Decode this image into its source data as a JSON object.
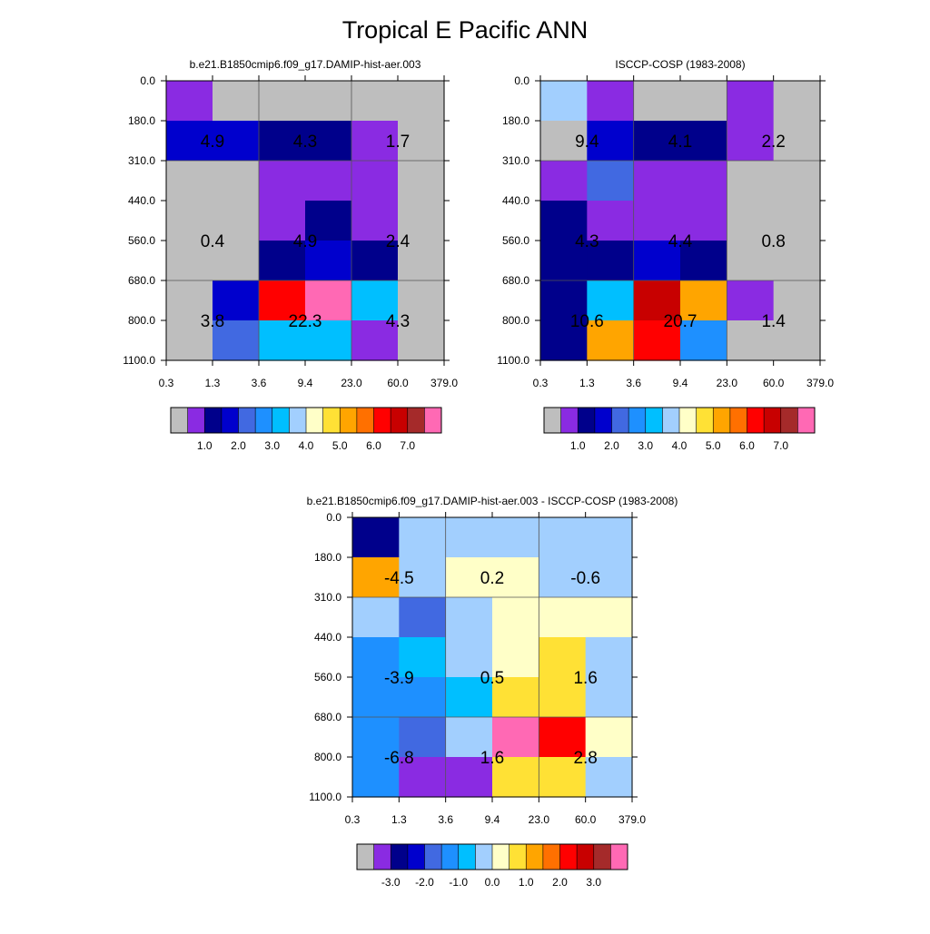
{
  "figure": {
    "title": "Tropical E Pacific ANN"
  },
  "colors": {
    "abs_palette": [
      "#bebebe",
      "#8a2be2",
      "#00008b",
      "#0000cd",
      "#4169e1",
      "#1e90ff",
      "#00bfff",
      "#a2cffe",
      "#ffffc8",
      "#ffe135",
      "#ffa500",
      "#ff7000",
      "#ff0000",
      "#c80000",
      "#a52a2a",
      "#ff69b4"
    ],
    "diff_palette": [
      "#bebebe",
      "#8a2be2",
      "#00008b",
      "#0000cd",
      "#4169e1",
      "#1e90ff",
      "#00bfff",
      "#a2cffe",
      "#ffffc8",
      "#ffe135",
      "#ffa500",
      "#ff7000",
      "#ff0000",
      "#c80000",
      "#a52a2a",
      "#ff69b4"
    ]
  },
  "chart_data": [
    {
      "type": "heatmap",
      "title": "b.e21.B1850cmip6.f09_g17.DAMIP-hist-aer.003",
      "x_ticks": [
        "0.3",
        "1.3",
        "3.6",
        "9.4",
        "23.0",
        "60.0",
        "379.0"
      ],
      "y_ticks": [
        "0.0",
        "180.0",
        "310.0",
        "440.0",
        "560.0",
        "680.0",
        "800.0",
        "1100.0"
      ],
      "cells": [
        [
          1,
          0,
          0,
          0,
          0,
          0
        ],
        [
          3,
          3,
          2,
          2,
          1,
          0
        ],
        [
          0,
          0,
          1,
          1,
          1,
          0
        ],
        [
          0,
          0,
          1,
          2,
          1,
          0
        ],
        [
          0,
          0,
          2,
          3,
          2,
          0
        ],
        [
          0,
          3,
          12,
          15,
          6,
          0
        ],
        [
          0,
          4,
          6,
          6,
          1,
          0
        ]
      ],
      "labels": [
        {
          "value": "4.9",
          "col": 1,
          "row": 1.5
        },
        {
          "value": "4.3",
          "col": 3,
          "row": 1.5
        },
        {
          "value": "1.7",
          "col": 5,
          "row": 1.5
        },
        {
          "value": "0.4",
          "col": 1,
          "row": 4
        },
        {
          "value": "4.9",
          "col": 3,
          "row": 4
        },
        {
          "value": "2.4",
          "col": 5,
          "row": 4
        },
        {
          "value": "3.8",
          "col": 1,
          "row": 6
        },
        {
          "value": "22.3",
          "col": 3,
          "row": 6
        },
        {
          "value": "4.3",
          "col": 5,
          "row": 6
        }
      ],
      "colorbar": {
        "palette": "abs_palette",
        "labels": [
          "1.0",
          "2.0",
          "3.0",
          "4.0",
          "5.0",
          "6.0",
          "7.0"
        ],
        "label_start_index": 2
      }
    },
    {
      "type": "heatmap",
      "title": "ISCCP-COSP (1983-2008)",
      "x_ticks": [
        "0.3",
        "1.3",
        "3.6",
        "9.4",
        "23.0",
        "60.0",
        "379.0"
      ],
      "y_ticks": [
        "0.0",
        "180.0",
        "310.0",
        "440.0",
        "560.0",
        "680.0",
        "800.0",
        "1100.0"
      ],
      "cells": [
        [
          7,
          1,
          0,
          0,
          1,
          0
        ],
        [
          0,
          3,
          2,
          2,
          1,
          0
        ],
        [
          1,
          4,
          1,
          1,
          0,
          0
        ],
        [
          2,
          1,
          1,
          1,
          0,
          0
        ],
        [
          2,
          2,
          3,
          2,
          0,
          0
        ],
        [
          2,
          6,
          13,
          10,
          1,
          0
        ],
        [
          2,
          10,
          12,
          5,
          0,
          0
        ]
      ],
      "labels": [
        {
          "value": "9.4",
          "col": 1,
          "row": 1.5
        },
        {
          "value": "4.1",
          "col": 3,
          "row": 1.5
        },
        {
          "value": "2.2",
          "col": 5,
          "row": 1.5
        },
        {
          "value": "4.3",
          "col": 1,
          "row": 4
        },
        {
          "value": "4.4",
          "col": 3,
          "row": 4
        },
        {
          "value": "0.8",
          "col": 5,
          "row": 4
        },
        {
          "value": "10.6",
          "col": 1,
          "row": 6
        },
        {
          "value": "20.7",
          "col": 3,
          "row": 6
        },
        {
          "value": "1.4",
          "col": 5,
          "row": 6
        }
      ],
      "colorbar": {
        "palette": "abs_palette",
        "labels": [
          "1.0",
          "2.0",
          "3.0",
          "4.0",
          "5.0",
          "6.0",
          "7.0"
        ],
        "label_start_index": 2
      }
    },
    {
      "type": "heatmap",
      "title": "b.e21.B1850cmip6.f09_g17.DAMIP-hist-aer.003 - ISCCP-COSP (1983-2008)",
      "x_ticks": [
        "0.3",
        "1.3",
        "3.6",
        "9.4",
        "23.0",
        "60.0",
        "379.0"
      ],
      "y_ticks": [
        "0.0",
        "180.0",
        "310.0",
        "440.0",
        "560.0",
        "680.0",
        "800.0",
        "1100.0"
      ],
      "cells": [
        [
          2,
          7,
          7,
          7,
          7,
          7
        ],
        [
          10,
          7,
          8,
          8,
          7,
          7
        ],
        [
          7,
          4,
          7,
          8,
          8,
          8
        ],
        [
          5,
          6,
          7,
          8,
          9,
          7
        ],
        [
          5,
          5,
          6,
          9,
          9,
          7
        ],
        [
          5,
          4,
          7,
          15,
          12,
          8
        ],
        [
          5,
          1,
          1,
          9,
          9,
          7
        ]
      ],
      "labels": [
        {
          "value": "-4.5",
          "col": 1,
          "row": 1.5
        },
        {
          "value": "0.2",
          "col": 3,
          "row": 1.5
        },
        {
          "value": "-0.6",
          "col": 5,
          "row": 1.5
        },
        {
          "value": "-3.9",
          "col": 1,
          "row": 4
        },
        {
          "value": "0.5",
          "col": 3,
          "row": 4
        },
        {
          "value": "1.6",
          "col": 5,
          "row": 4
        },
        {
          "value": "-6.8",
          "col": 1,
          "row": 6
        },
        {
          "value": "1.6",
          "col": 3,
          "row": 6
        },
        {
          "value": "2.8",
          "col": 5,
          "row": 6
        }
      ],
      "colorbar": {
        "palette": "diff_palette",
        "labels": [
          "-3.0",
          "-2.0",
          "-1.0",
          "0.0",
          "1.0",
          "2.0",
          "3.0"
        ],
        "label_start_index": 2
      }
    }
  ]
}
